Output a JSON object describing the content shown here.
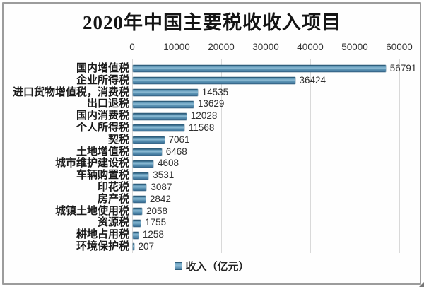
{
  "chart_data": {
    "type": "bar",
    "orientation": "horizontal",
    "title": "2020年中国主要税收收入项目",
    "legend": "收入（亿元）",
    "legend_position": "bottom",
    "xlim": [
      0,
      60000
    ],
    "x_ticks": [
      0,
      10000,
      20000,
      30000,
      40000,
      50000,
      60000
    ],
    "grid": "vertical-light-gray",
    "categories": [
      "国内增值税",
      "企业所得税",
      "进口货物增值税，消费税",
      "出口退税",
      "国内消费税",
      "个人所得税",
      "契税",
      "土地增值税",
      "城市维护建设税",
      "车辆购置税",
      "印花税",
      "房产税",
      "城镇土地使用税",
      "资源税",
      "耕地占用税",
      "环境保护税"
    ],
    "values": [
      56791,
      36424,
      14535,
      13629,
      12028,
      11568,
      7061,
      6468,
      4608,
      3531,
      3087,
      2842,
      2058,
      1755,
      1258,
      207
    ],
    "colors": {
      "bar_main": "#4f8cb4",
      "bar_edge_dark": "#2e5e7c",
      "bar_highlight": "#8cbad4",
      "gridline": "#d9d9d9",
      "frame_border": "#9c9c9c",
      "title_text": "#141414",
      "axis_text": "#333333",
      "value_text": "#2e2e2e",
      "category_text": "#1a1a1a"
    }
  }
}
